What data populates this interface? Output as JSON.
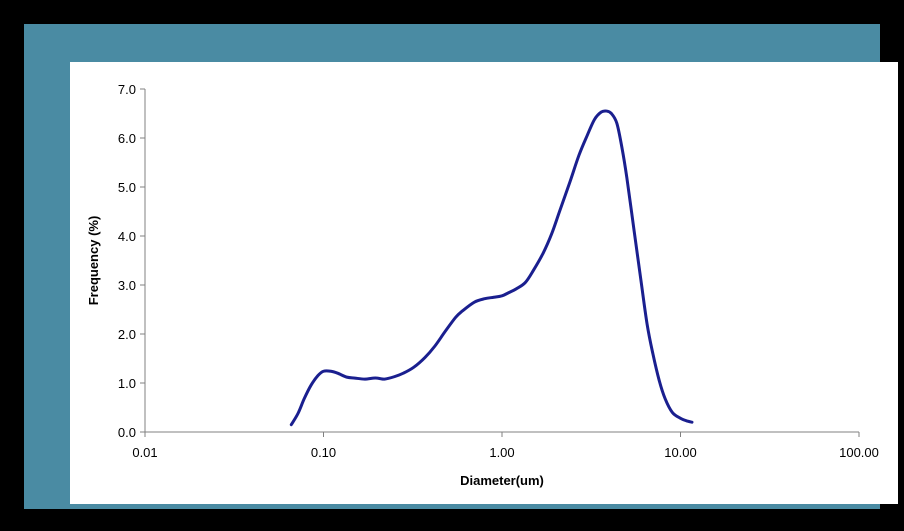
{
  "colors": {
    "page_background": "#000000",
    "frame": "#4a8ba3",
    "plot_background": "#ffffff",
    "series_line": "#1a1f8f",
    "axis": "#808080"
  },
  "chart_data": {
    "type": "line",
    "title": "",
    "xlabel": "Diameter(um)",
    "ylabel": "Frequency (%)",
    "x_scale": "log",
    "xlim": [
      0.01,
      100
    ],
    "ylim": [
      0,
      7
    ],
    "grid": false,
    "legend": "none",
    "x_ticks": [
      {
        "value": 0.01,
        "label": "0.01"
      },
      {
        "value": 0.1,
        "label": "0.10"
      },
      {
        "value": 1,
        "label": "1.00"
      },
      {
        "value": 10,
        "label": "10.00"
      },
      {
        "value": 100,
        "label": "100.00"
      }
    ],
    "y_ticks": [
      {
        "value": 0,
        "label": "0.0"
      },
      {
        "value": 1,
        "label": "1.0"
      },
      {
        "value": 2,
        "label": "2.0"
      },
      {
        "value": 3,
        "label": "3.0"
      },
      {
        "value": 4,
        "label": "4.0"
      },
      {
        "value": 5,
        "label": "5.0"
      },
      {
        "value": 6,
        "label": "6.0"
      },
      {
        "value": 7,
        "label": "7.0"
      }
    ],
    "series": [
      {
        "x": [
          0.066,
          0.072,
          0.078,
          0.085,
          0.093,
          0.1,
          0.11,
          0.12,
          0.135,
          0.15,
          0.17,
          0.19,
          0.2,
          0.22,
          0.25,
          0.28,
          0.32,
          0.37,
          0.42,
          0.48,
          0.55,
          0.6,
          0.7,
          0.8,
          0.9,
          1.0,
          1.1,
          1.2,
          1.35,
          1.5,
          1.7,
          1.9,
          2.1,
          2.4,
          2.7,
          3.0,
          3.3,
          3.6,
          3.85,
          4.1,
          4.4,
          4.7,
          5.0,
          5.5,
          6.0,
          6.5,
          7.0,
          7.6,
          8.2,
          9.0,
          10.0,
          11.0,
          11.6
        ],
        "values": [
          0.15,
          0.38,
          0.68,
          0.95,
          1.15,
          1.24,
          1.24,
          1.2,
          1.12,
          1.1,
          1.08,
          1.1,
          1.1,
          1.08,
          1.13,
          1.2,
          1.32,
          1.52,
          1.75,
          2.05,
          2.34,
          2.47,
          2.65,
          2.72,
          2.75,
          2.78,
          2.85,
          2.92,
          3.05,
          3.3,
          3.65,
          4.05,
          4.5,
          5.1,
          5.65,
          6.05,
          6.38,
          6.53,
          6.55,
          6.5,
          6.3,
          5.8,
          5.2,
          4.1,
          3.1,
          2.2,
          1.6,
          1.05,
          0.68,
          0.4,
          0.28,
          0.22,
          0.2
        ]
      }
    ]
  }
}
